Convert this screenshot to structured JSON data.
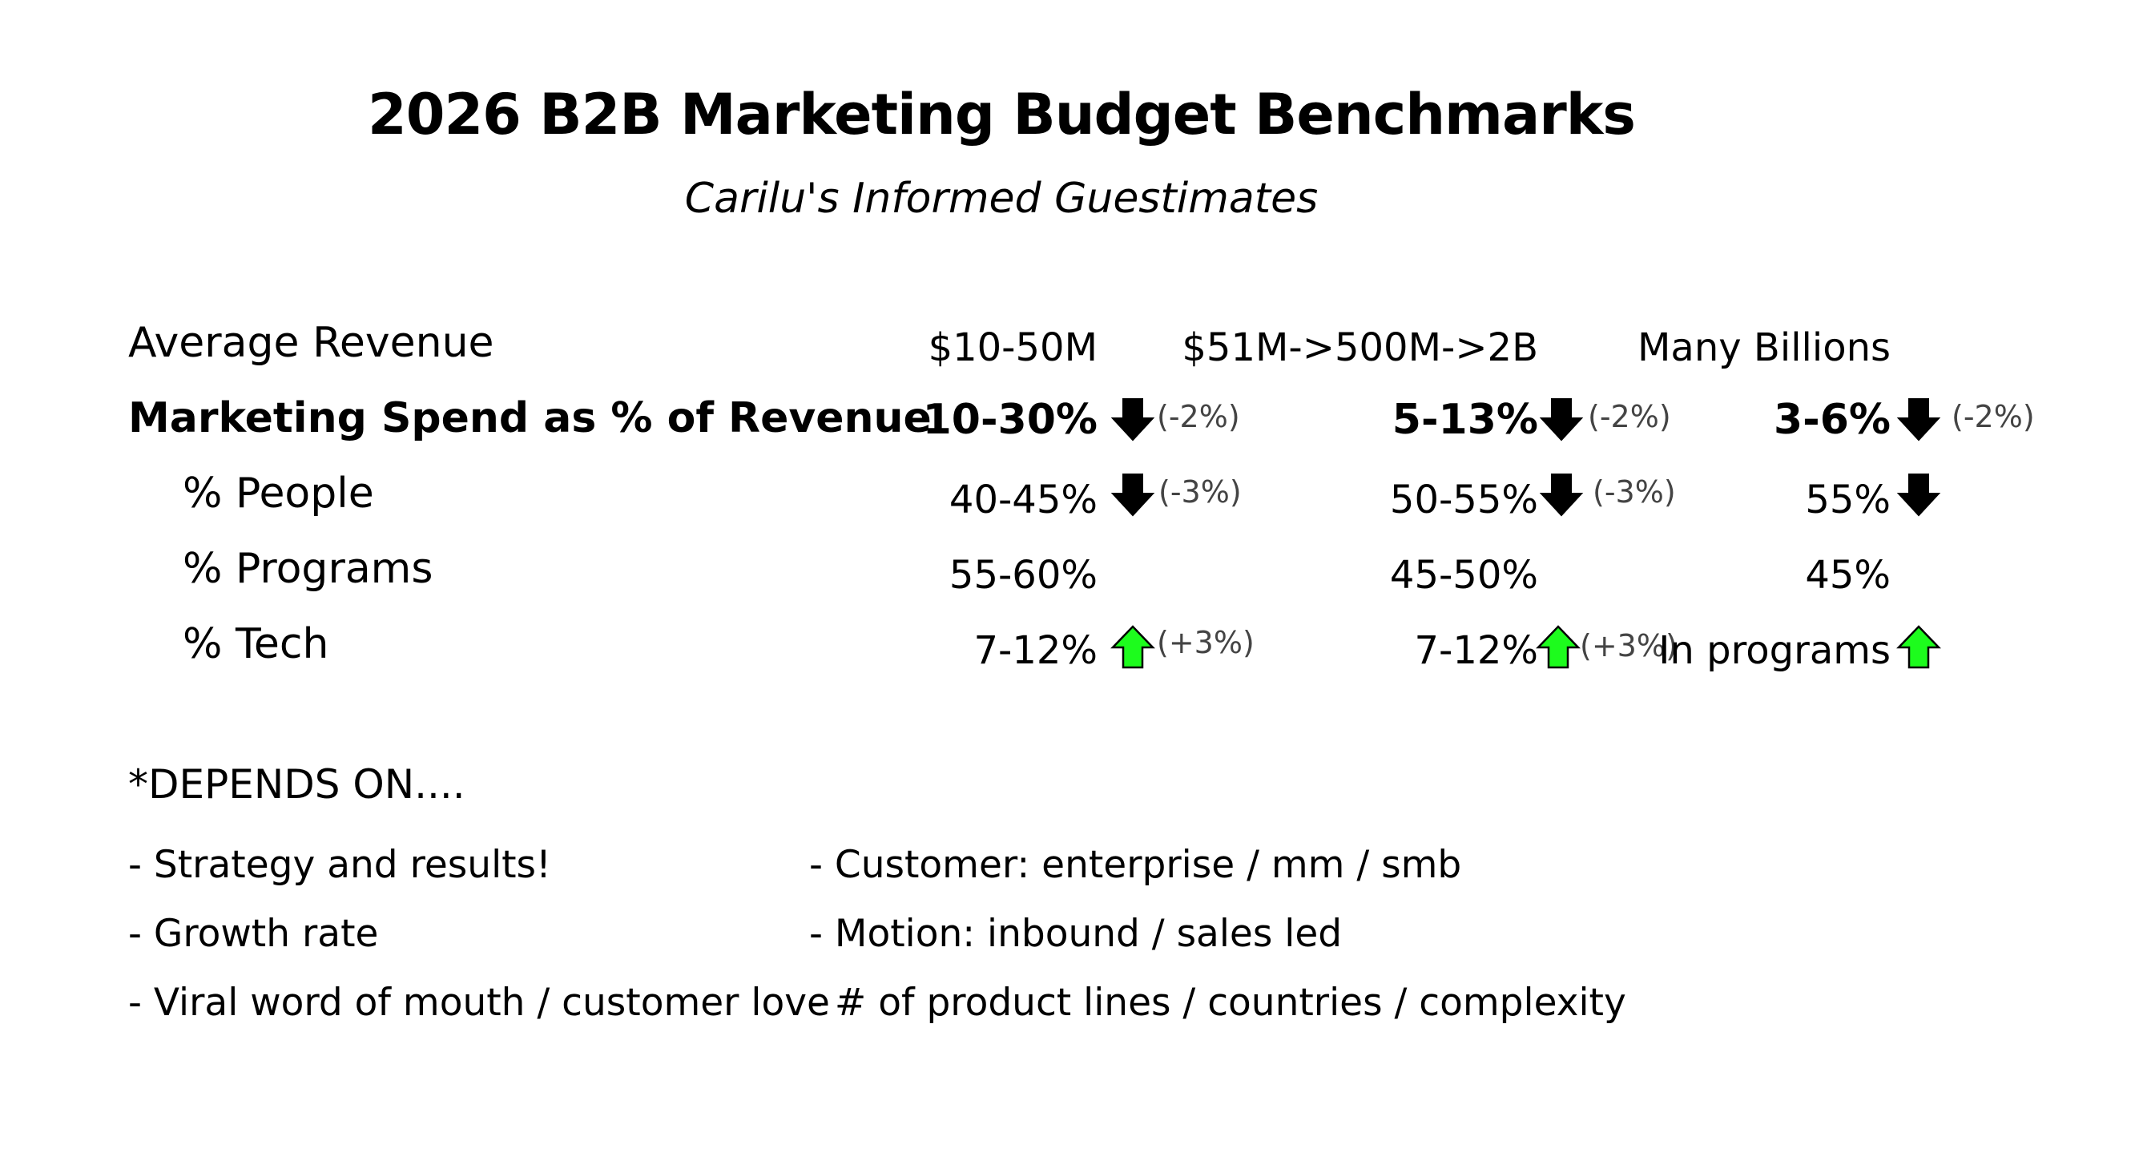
{
  "title": "2026 B2B Marketing Budget Benchmarks",
  "subtitle": "Carilu's Informed Guestimates",
  "table": {
    "header": {
      "label": "Average Revenue",
      "col1": "$10-50M",
      "col2": "$51M->500M->2B",
      "col3": "Many Billions"
    },
    "rows": [
      {
        "label": "Marketing Spend as % of Revenue",
        "col1": "10-30%",
        "col1_trend": "down",
        "col1_note": "(-2%)",
        "col2": "5-13%",
        "col2_trend": "down",
        "col2_note": "(-2%)",
        "col3": "3-6%",
        "col3_trend": "down",
        "col3_note": "(-2%)"
      },
      {
        "label": "% People",
        "col1": "40-45%",
        "col1_trend": "down",
        "col1_note": "(-3%)",
        "col2": "50-55%",
        "col2_trend": "down",
        "col2_note": "(-3%)",
        "col3": "55%",
        "col3_trend": "down"
      },
      {
        "label": "% Programs",
        "col1": "55-60%",
        "col2": "45-50%",
        "col3": "45%"
      },
      {
        "label": "% Tech",
        "col1": "7-12%",
        "col1_trend": "up",
        "col1_note": "(+3%)",
        "col2": "7-12%",
        "col2_trend": "up",
        "col2_note": "(+3%)",
        "col3": "In programs",
        "col3_trend": "up"
      }
    ]
  },
  "depends": {
    "title": "*DEPENDS ON....",
    "left": [
      "- Strategy and results!",
      "- Growth rate",
      "- Viral word of mouth / customer love"
    ],
    "right": [
      "- Customer: enterprise / mm / smb",
      "- Motion: inbound / sales led",
      "- # of product lines / countries / complexity"
    ]
  },
  "colors": {
    "down_arrow": "#000000",
    "up_arrow": "#1dfc1d",
    "note_text": "#444444"
  },
  "icons": {
    "down": "arrow-down-icon",
    "up": "arrow-up-icon"
  }
}
